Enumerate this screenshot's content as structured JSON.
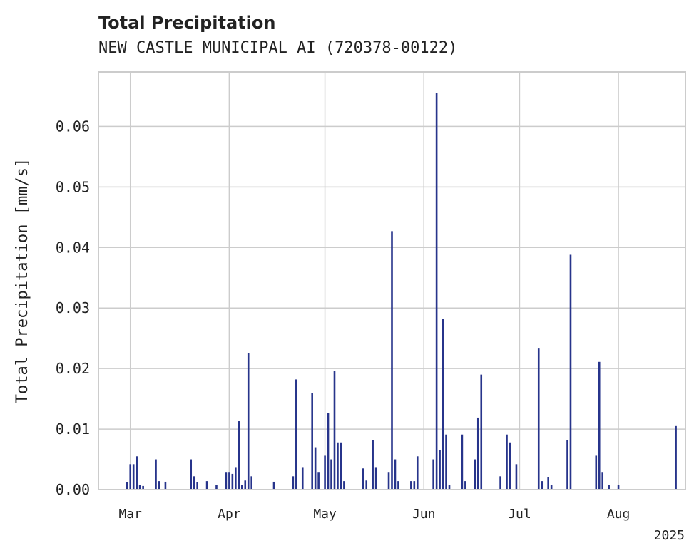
{
  "chart_data": {
    "type": "bar",
    "title": "Total Precipitation",
    "subtitle": "NEW CASTLE MUNICIPAL AI (720378-00122)",
    "xlabel": "",
    "ylabel": "Total Precipitation [mm/s]",
    "xlim": [
      "2025-02-19",
      "2025-08-22"
    ],
    "ylim": [
      0,
      0.069
    ],
    "yticks": [
      0.0,
      0.01,
      0.02,
      0.03,
      0.04,
      0.05,
      0.06
    ],
    "ytick_labels": [
      "0.00",
      "0.01",
      "0.02",
      "0.03",
      "0.04",
      "0.05",
      "0.06"
    ],
    "xticks": [
      "2025-03-01",
      "2025-04-01",
      "2025-05-01",
      "2025-06-01",
      "2025-07-01",
      "2025-08-01"
    ],
    "xtick_labels": [
      "Mar",
      "Apr",
      "May",
      "Jun",
      "Jul",
      "Aug"
    ],
    "year_label": "2025",
    "grid": true,
    "bar_color": "#27348b",
    "series": [
      {
        "x": [
          "2025-02-28",
          "2025-03-01",
          "2025-03-02",
          "2025-03-03",
          "2025-03-04",
          "2025-03-05",
          "2025-03-09",
          "2025-03-10",
          "2025-03-12",
          "2025-03-20",
          "2025-03-21",
          "2025-03-22",
          "2025-03-25",
          "2025-03-28",
          "2025-03-31",
          "2025-04-01",
          "2025-04-02",
          "2025-04-03",
          "2025-04-04",
          "2025-04-05",
          "2025-04-06",
          "2025-04-07",
          "2025-04-08",
          "2025-04-15",
          "2025-04-21",
          "2025-04-22",
          "2025-04-24",
          "2025-04-27",
          "2025-04-28",
          "2025-04-29",
          "2025-05-01",
          "2025-05-02",
          "2025-05-03",
          "2025-05-04",
          "2025-05-05",
          "2025-05-06",
          "2025-05-07",
          "2025-05-13",
          "2025-05-14",
          "2025-05-16",
          "2025-05-17",
          "2025-05-21",
          "2025-05-22",
          "2025-05-23",
          "2025-05-24",
          "2025-05-28",
          "2025-05-29",
          "2025-05-30",
          "2025-06-04",
          "2025-06-05",
          "2025-06-06",
          "2025-06-07",
          "2025-06-08",
          "2025-06-09",
          "2025-06-13",
          "2025-06-14",
          "2025-06-17",
          "2025-06-18",
          "2025-06-19",
          "2025-06-25",
          "2025-06-27",
          "2025-06-28",
          "2025-06-30",
          "2025-07-07",
          "2025-07-08",
          "2025-07-10",
          "2025-07-11",
          "2025-07-16",
          "2025-07-17",
          "2025-07-25",
          "2025-07-26",
          "2025-07-27",
          "2025-07-29",
          "2025-08-01",
          "2025-08-19"
        ],
        "values": [
          0.0012,
          0.0042,
          0.0042,
          0.0055,
          0.0008,
          0.0006,
          0.005,
          0.0014,
          0.0013,
          0.005,
          0.0022,
          0.0012,
          0.0014,
          0.0008,
          0.0028,
          0.0028,
          0.0026,
          0.0036,
          0.0113,
          0.0008,
          0.0015,
          0.0225,
          0.0022,
          0.0013,
          0.0022,
          0.0182,
          0.0036,
          0.016,
          0.007,
          0.0028,
          0.0056,
          0.0127,
          0.005,
          0.0196,
          0.0078,
          0.0078,
          0.0014,
          0.0035,
          0.0015,
          0.0082,
          0.0036,
          0.0028,
          0.0427,
          0.005,
          0.0014,
          0.0014,
          0.0014,
          0.0055,
          0.005,
          0.0655,
          0.0065,
          0.0282,
          0.0091,
          0.0008,
          0.0091,
          0.0014,
          0.005,
          0.0119,
          0.019,
          0.0022,
          0.0091,
          0.0078,
          0.0042,
          0.0233,
          0.0014,
          0.002,
          0.0008,
          0.0082,
          0.0388,
          0.0056,
          0.0211,
          0.0028,
          0.0008,
          0.0008,
          0.0105
        ]
      }
    ]
  }
}
